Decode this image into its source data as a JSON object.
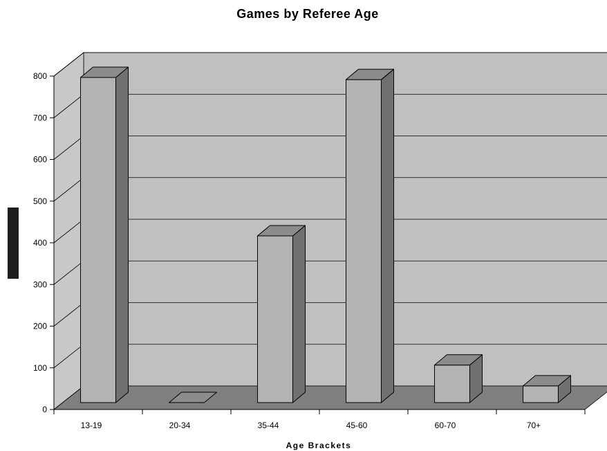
{
  "chart_data": {
    "type": "bar",
    "title": "Games by Referee Age",
    "xlabel": "Age Brackets",
    "ylabel": "",
    "categories": [
      "13-19",
      "20-34",
      "35-44",
      "45-60",
      "60-70",
      "70+"
    ],
    "values": [
      780,
      0,
      400,
      775,
      90,
      40
    ],
    "ylim": [
      0,
      800
    ],
    "yticks": [
      0,
      100,
      200,
      300,
      400,
      500,
      600,
      700,
      800
    ],
    "grid": true,
    "legend": "none",
    "colors": {
      "back_wall": "#c0c0c0",
      "side_wall": "#c8c8c8",
      "floor": "#808080",
      "bar_front": "#b3b3b3",
      "bar_top": "#8c8c8c",
      "bar_side": "#707070",
      "y_label_block": "#1e1e1e"
    }
  }
}
